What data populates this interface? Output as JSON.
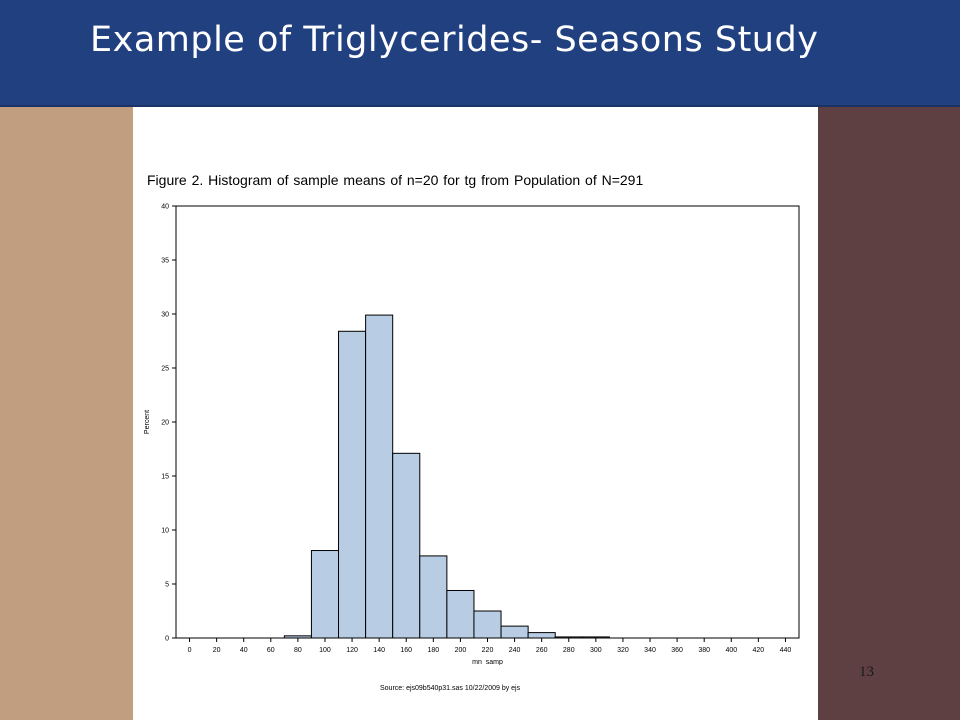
{
  "slide": {
    "title": "Example of Triglycerides- Seasons Study",
    "page_number": "13"
  },
  "figure": {
    "source_note": "Source: ejs09b540p31.sas 10/22/2009 by ejs"
  },
  "colors": {
    "header_bg": "#214080",
    "left_band": "#c09e7f",
    "right_band": "#5e4042",
    "bar_fill": "#b8cce4",
    "bar_stroke": "#000000"
  },
  "chart_data": {
    "type": "bar",
    "title": "Figure 2.  Histogram of sample means of n=20 for tg from Population of N=291",
    "xlabel": "mn_samp",
    "ylabel": "Percent",
    "xlim": [
      -10,
      450
    ],
    "ylim": [
      0,
      40
    ],
    "x_ticks": [
      0,
      20,
      40,
      60,
      80,
      100,
      120,
      140,
      160,
      180,
      200,
      220,
      240,
      260,
      280,
      300,
      320,
      340,
      360,
      380,
      400,
      420,
      440
    ],
    "y_ticks": [
      0,
      5,
      10,
      15,
      20,
      25,
      30,
      35,
      40
    ],
    "bin_width": 20,
    "bins": [
      {
        "center": 80,
        "value": 0.2
      },
      {
        "center": 100,
        "value": 8.1
      },
      {
        "center": 120,
        "value": 28.4
      },
      {
        "center": 140,
        "value": 29.9
      },
      {
        "center": 160,
        "value": 17.1
      },
      {
        "center": 180,
        "value": 7.6
      },
      {
        "center": 200,
        "value": 4.4
      },
      {
        "center": 220,
        "value": 2.5
      },
      {
        "center": 240,
        "value": 1.1
      },
      {
        "center": 260,
        "value": 0.5
      },
      {
        "center": 280,
        "value": 0.1
      },
      {
        "center": 300,
        "value": 0.1
      }
    ],
    "grid": false
  }
}
